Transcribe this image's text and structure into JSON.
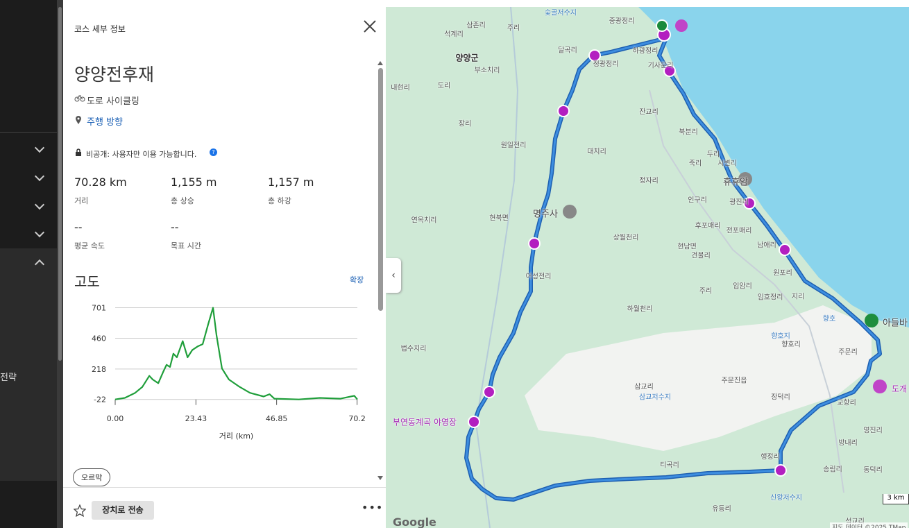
{
  "sidebar": {
    "item": "전략"
  },
  "panel": {
    "header": "코스 세부 정보",
    "title": "양양전후재",
    "activity": "도로 사이클링",
    "direction": "주행 방향",
    "privacy": "비공개: 사용자만 이용 가능합니다.",
    "stats": [
      {
        "value": "70.28 km",
        "label": "거리"
      },
      {
        "value": "1,155 m",
        "label": "총 상승"
      },
      {
        "value": "1,157 m",
        "label": "총 하강"
      },
      {
        "value": "--",
        "label": "평균 속도"
      },
      {
        "value": "--",
        "label": "목표 시간"
      }
    ],
    "elevation": {
      "title": "고도",
      "expand": "확장",
      "xlabel": "거리 (km)",
      "color": "#1f9e3a",
      "xlim": [
        0,
        70.28
      ],
      "ylim": [
        -40,
        720
      ],
      "xticks": [
        {
          "value": 0,
          "label": "0.00"
        },
        23.43,
        46.85,
        70.2
      ],
      "yticks": [
        -22,
        218,
        460,
        701
      ],
      "distance": [
        0,
        2.8,
        5.8,
        7.9,
        9.9,
        10.9,
        12.5,
        13.9,
        14.9,
        15.9,
        16.9,
        17.9,
        19.6,
        21,
        22.4,
        24,
        25.4,
        27,
        28.4,
        29.4,
        31,
        33,
        36.1,
        39.1,
        43.1,
        44.8,
        46.2,
        53.3,
        59.4,
        65.4,
        69.4,
        70.28
      ],
      "elevation": [
        -22,
        -10,
        30,
        77,
        164,
        135,
        106,
        193,
        251,
        234,
        339,
        310,
        438,
        310,
        368,
        397,
        414,
        572,
        701,
        485,
        222,
        135,
        77,
        30,
        1,
        19,
        -16,
        -22,
        -10,
        -16,
        7,
        -22
      ]
    },
    "climbs": "오르막",
    "send": "장치로 전송"
  },
  "map": {
    "labels": [
      "숯골저수지",
      "중광정리",
      "삼존리",
      "주리",
      "석계리",
      "달곡리",
      "하광정리",
      "양양군",
      "부소치리",
      "정광정리",
      "기사문리",
      "내현리",
      "도리",
      "잔교리",
      "장리",
      "북분리",
      "원일전리",
      "대치리",
      "두리",
      "죽리",
      "시변리",
      "휴휴암",
      "정자리",
      "인구리",
      "광진리",
      "명주사",
      "연옥치리",
      "현북면",
      "후포매리",
      "전포매리",
      "상월천리",
      "현남면",
      "남애리",
      "견불리",
      "원포리",
      "어성전리",
      "주리",
      "입암리",
      "임호정리",
      "지리",
      "하월천리",
      "향호",
      "아들바",
      "향호지",
      "향호리",
      "법수치리",
      "주문리",
      "삼교리",
      "삼교저수지",
      "주문진읍",
      "장덕리",
      "도개",
      "교항리",
      "부연동계곡 야영장",
      "영진리",
      "방내리",
      "행정리",
      "티곡리",
      "송림리",
      "동덕리",
      "신왕저수지",
      "유등리",
      "석교리"
    ],
    "logo": "Google",
    "scale": "3 km",
    "attribution": "지도 데이터 ©2025 TMap"
  }
}
